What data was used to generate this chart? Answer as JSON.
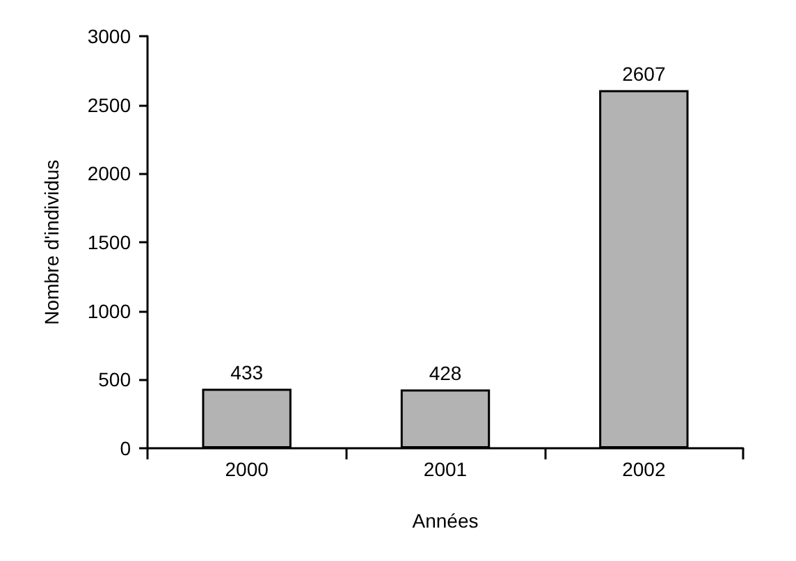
{
  "chart_data": {
    "type": "bar",
    "xlabel": "Années",
    "ylabel": "Nombre d'individus",
    "categories": [
      "2000",
      "2001",
      "2002"
    ],
    "values": [
      433,
      428,
      2607
    ],
    "color": "#b3b3b3",
    "ylim": [
      0,
      3000
    ],
    "yticks": [
      0,
      500,
      1000,
      1500,
      2000,
      2500,
      3000
    ],
    "data_labels": true,
    "grid": false
  }
}
